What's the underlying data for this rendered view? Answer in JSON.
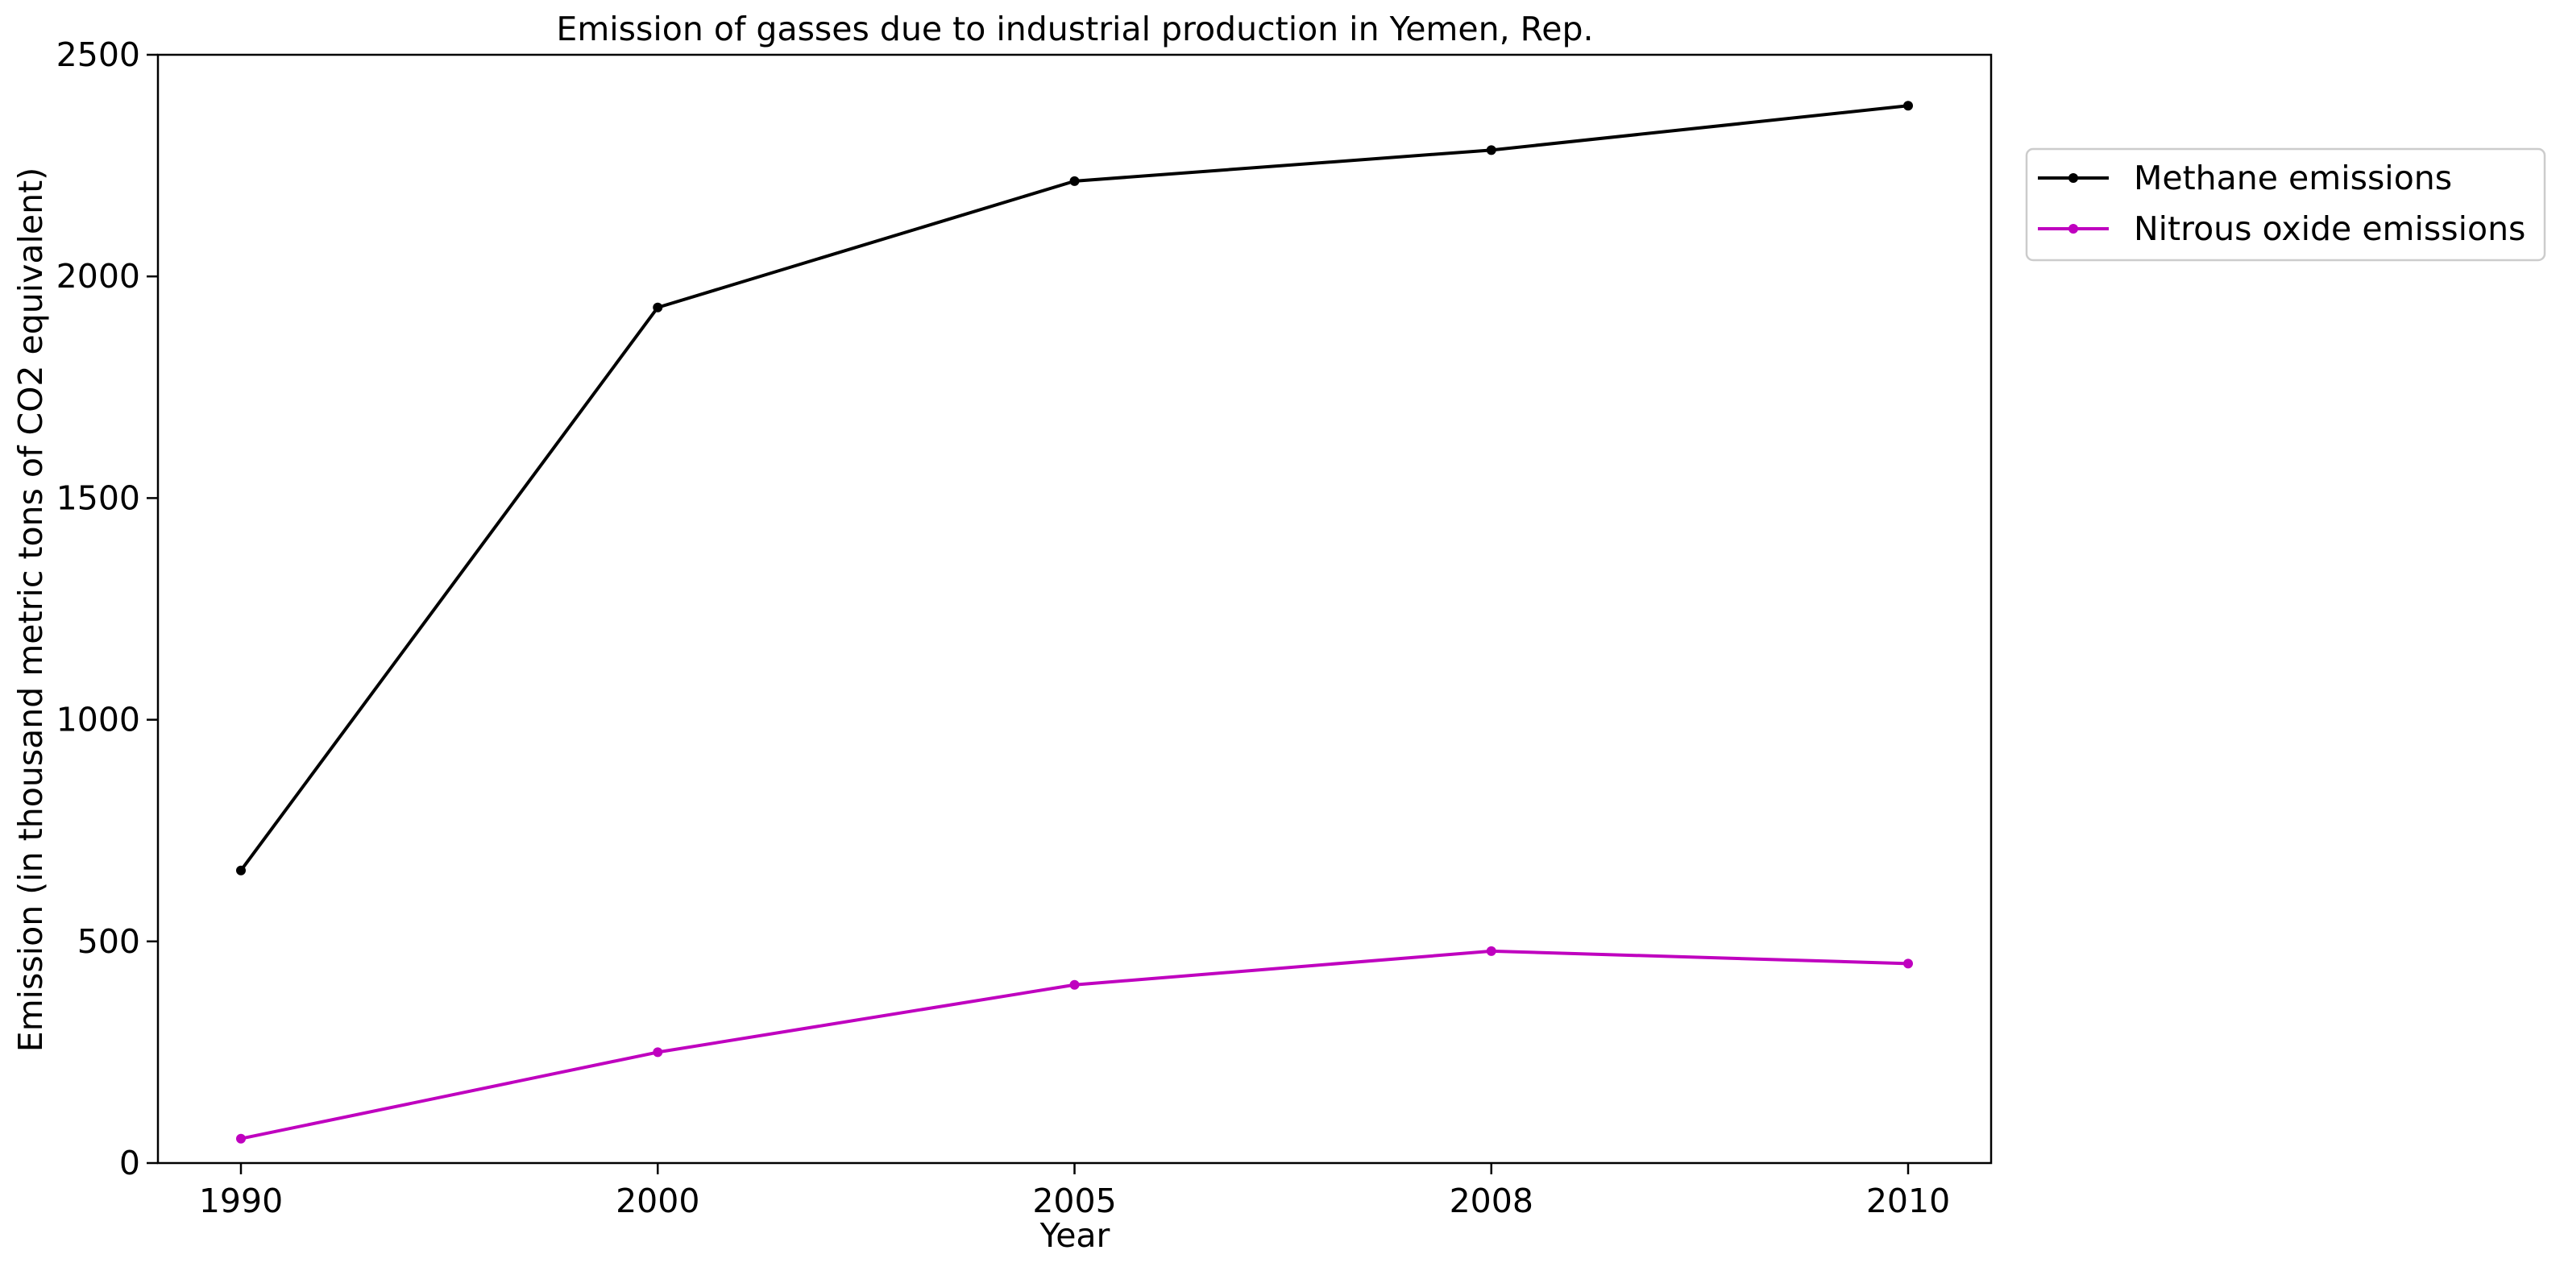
{
  "chart_data": {
    "type": "line",
    "title": "Emission of gasses due to industrial production in Yemen, Rep.",
    "xlabel": "Year",
    "ylabel": "Emission (in thousand metric tons of CO2 equivalent)",
    "categories": [
      "1990",
      "2000",
      "2005",
      "2008",
      "2010"
    ],
    "ylim": [
      0,
      2500
    ],
    "yticks": [
      0,
      500,
      1000,
      1500,
      2000,
      2500
    ],
    "grid": false,
    "legend_position": "outside-right-top",
    "series": [
      {
        "name": "Methane emissions",
        "color": "#000000",
        "values": [
          660,
          1930,
          2215,
          2285,
          2385
        ]
      },
      {
        "name": "Nitrous oxide emissions",
        "color": "#bf00bf",
        "values": [
          55,
          250,
          402,
          478,
          450
        ]
      }
    ]
  }
}
